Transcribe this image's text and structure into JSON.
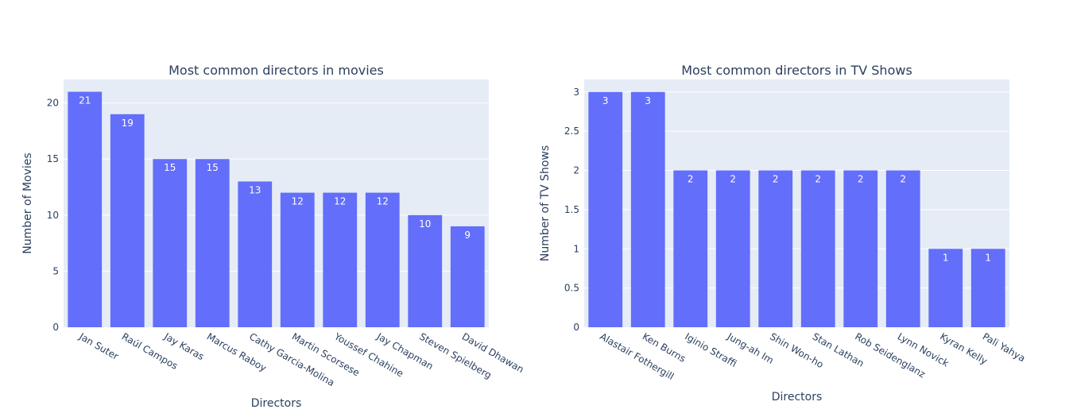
{
  "colors": {
    "plot_bg": "#e5ecf6",
    "bar": "#636efa",
    "grid": "#ffffff",
    "text": "#2a3f5f"
  },
  "chart_data": [
    {
      "type": "bar",
      "title": "Most common directors in movies",
      "xlabel": "Directors",
      "ylabel": "Number of Movies",
      "categories": [
        "Jan Suter",
        "Raúl Campos",
        "Jay Karas",
        "Marcus Raboy",
        "Cathy Garcia-Molina",
        "Martin Scorsese",
        "Youssef Chahine",
        "Jay Chapman",
        "Steven Spielberg",
        "David Dhawan"
      ],
      "values": [
        21,
        19,
        15,
        15,
        13,
        12,
        12,
        12,
        10,
        9
      ],
      "ylim": [
        0,
        22.1
      ],
      "yticks": [
        0,
        5,
        10,
        15,
        20
      ],
      "ytick_labels": [
        "0",
        "5",
        "10",
        "15",
        "20"
      ],
      "grid": true,
      "bar_labels": true
    },
    {
      "type": "bar",
      "title": "Most common directors in TV Shows",
      "xlabel": "Directors",
      "ylabel": "Number of TV Shows",
      "categories": [
        "Alastair Fothergill",
        "Ken Burns",
        "Iginio Straffi",
        "Jung-ah Im",
        "Shin Won-ho",
        "Stan Lathan",
        "Rob Seidenglanz",
        "Lynn Novick",
        "Kyran Kelly",
        "Pali Yahya"
      ],
      "values": [
        3,
        3,
        2,
        2,
        2,
        2,
        2,
        2,
        1,
        1
      ],
      "ylim": [
        0,
        3.16
      ],
      "yticks": [
        0,
        0.5,
        1,
        1.5,
        2,
        2.5,
        3
      ],
      "ytick_labels": [
        "0",
        "0.5",
        "1",
        "1.5",
        "2",
        "2.5",
        "3"
      ],
      "grid": true,
      "bar_labels": true
    }
  ]
}
